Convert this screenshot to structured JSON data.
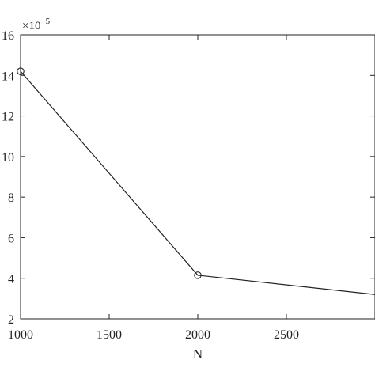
{
  "chart_data": {
    "type": "line",
    "xlabel": "N",
    "ylabel": "",
    "title": "",
    "y_multiplier_label": "×10",
    "y_multiplier_exponent": "−5",
    "xlim": [
      1000,
      3000
    ],
    "ylim": [
      2,
      16
    ],
    "xticks": [
      1000,
      1500,
      2000,
      2500
    ],
    "yticks": [
      2,
      4,
      6,
      8,
      10,
      12,
      14,
      16
    ],
    "grid": false,
    "legend": "none",
    "series": [
      {
        "x": [
          1000,
          2000,
          3000
        ],
        "y": [
          14.2,
          4.15,
          3.2
        ],
        "marker": "circle",
        "color": "#222222"
      }
    ]
  }
}
